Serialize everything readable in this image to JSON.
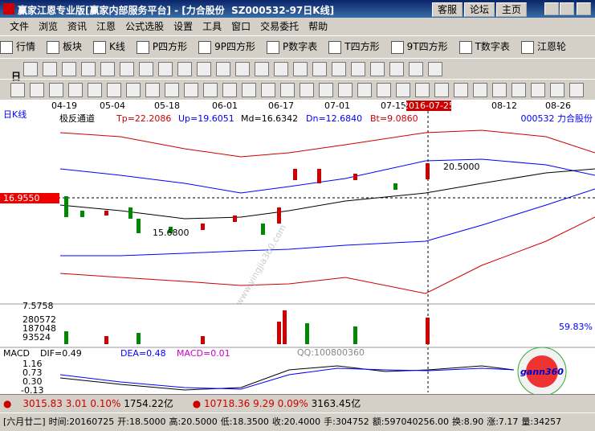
{
  "title_bar": {
    "title": "赢家江恩专业版[赢家内部服务平台] - [力合股份  SZ000532-97日K线]",
    "buttons": [
      "客服",
      "论坛",
      "主页"
    ]
  },
  "menu": [
    "文件",
    "浏览",
    "资讯",
    "江恩",
    "公式选股",
    "设置",
    "工具",
    "窗口",
    "交易委托",
    "帮助"
  ],
  "toolbar": [
    "行情",
    "板块",
    "K线",
    "P四方形",
    "9P四方形",
    "P数字表",
    "T四方形",
    "9T四方形",
    "T数字表",
    "江恩轮"
  ],
  "toolbar2_label": "日",
  "chart": {
    "period": "日K线",
    "dates": [
      "04-19",
      "05-04",
      "05-18",
      "06-01",
      "06-17",
      "07-01",
      "07-15",
      "2016-07-25",
      "08-12",
      "08-26"
    ],
    "indicator": {
      "name": "极反通道",
      "tp": "Tp=22.2086",
      "up": "Up=19.6051",
      "md": "Md=16.6342",
      "dn": "Dn=12.6840",
      "bt": "Bt=9.0860"
    },
    "stock": "000532 力合股份",
    "cursor_price": "16.9550",
    "high_label": "20.5000",
    "low_label": "15.6800",
    "volume_labels": [
      "7.5758",
      "280572",
      "187048",
      "93524"
    ],
    "volume_pct": "59.83%",
    "macd": {
      "name": "MACD",
      "dif": "DIF=0.49",
      "dea": "DEA=0.48",
      "macd": "MACD=0.01",
      "ticks": [
        "1.16",
        "0.73",
        "0.30",
        "-0.13"
      ]
    },
    "watermark": "QQ:100800360",
    "logo": "gann360"
  },
  "index_bar": {
    "sh": {
      "value": "3015.83",
      "change": "3.01",
      "pct": "0.10%",
      "amount": "1754.22亿"
    },
    "sz": {
      "value": "10718.36",
      "change": "9.29",
      "pct": "0.09%",
      "amount": "3163.45亿"
    }
  },
  "status": [
    "[六月廿二]",
    "时间:20160725",
    "开:18.5000",
    "高:20.5000",
    "低:18.3500",
    "收:20.4000",
    "手:304752",
    "额:597040256.00",
    "换:8.90",
    "涨:7.17",
    "量:34257"
  ]
}
